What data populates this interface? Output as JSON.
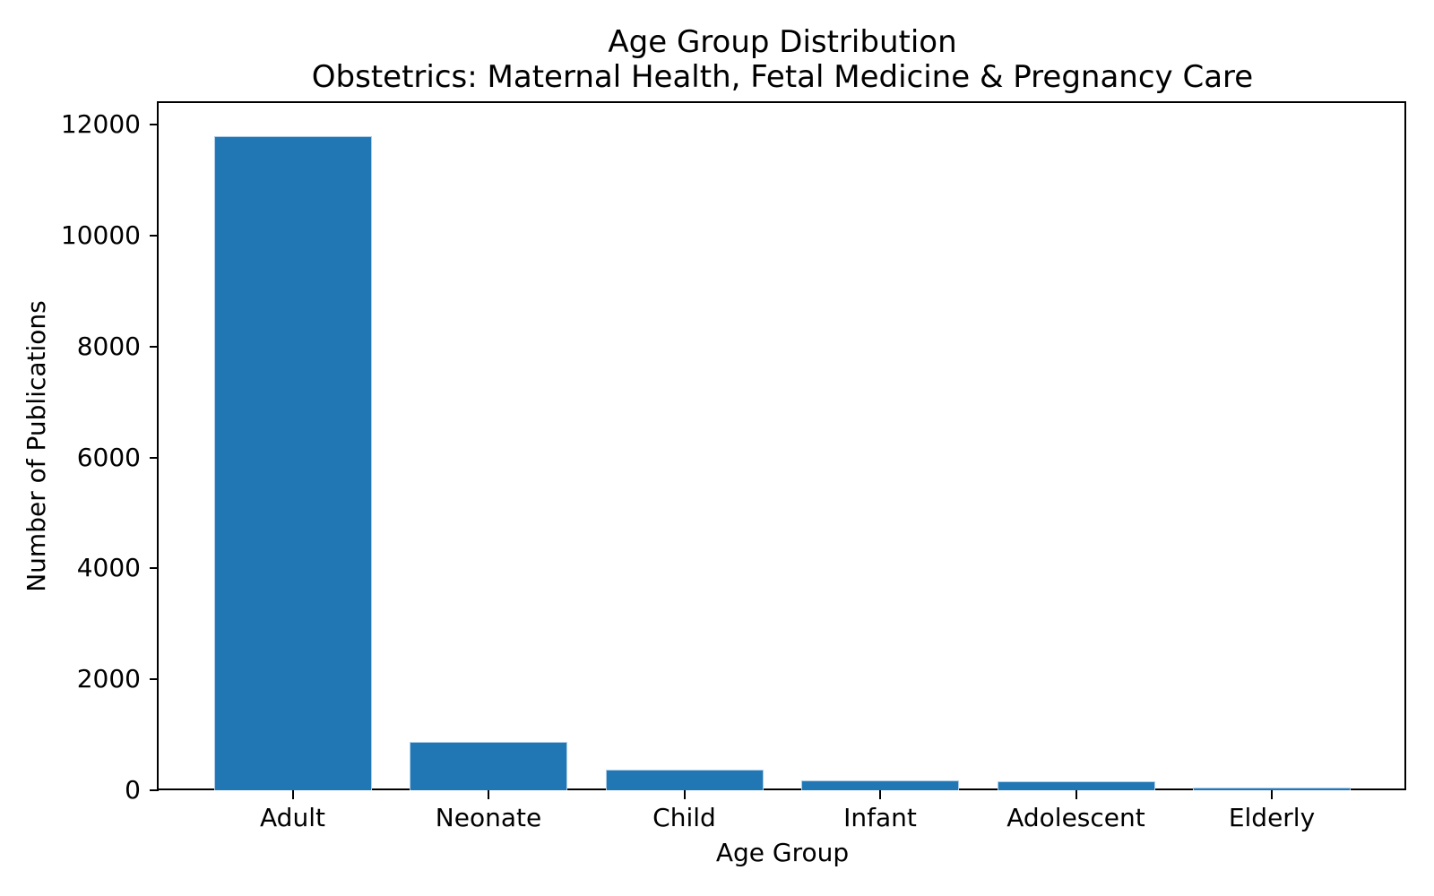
{
  "chart_data": {
    "type": "bar",
    "title": "Age Group Distribution",
    "subtitle": "Obstetrics: Maternal Health, Fetal Medicine & Pregnancy Care",
    "xlabel": "Age Group",
    "ylabel": "Number of Publications",
    "categories": [
      "Adult",
      "Neonate",
      "Child",
      "Infant",
      "Adolescent",
      "Elderly"
    ],
    "values": [
      11790,
      870,
      370,
      185,
      165,
      50
    ],
    "yticks": [
      0,
      2000,
      4000,
      6000,
      8000,
      10000,
      12000
    ],
    "ylim": [
      0,
      12390
    ],
    "grid": false,
    "legend_position": "none",
    "bar_color": "#2077b4",
    "bar_edge_color": "#aecde8",
    "axis_color": "#000000",
    "text_color": "#000000",
    "background_color": "#ffffff"
  }
}
